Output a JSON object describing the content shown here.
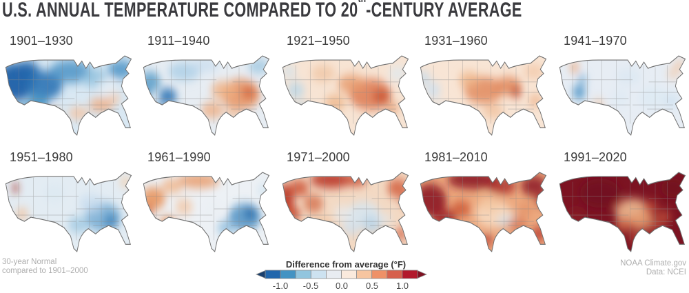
{
  "title": {
    "part1": "U.S. ANNUAL TEMPERATURE COMPARED TO 20",
    "sup": "th",
    "part2": "-CENTURY AVERAGE"
  },
  "maps": [
    {
      "label": "1901–1930",
      "base": "#d9e8f3",
      "blobs": [
        [
          22,
          30,
          24,
          18,
          "#1a5fa8",
          0.95
        ],
        [
          36,
          20,
          16,
          10,
          "#2166ac",
          0.9
        ],
        [
          58,
          33,
          22,
          14,
          "#2e74b5",
          0.9
        ],
        [
          50,
          50,
          13,
          9,
          "#4393c3",
          0.85
        ],
        [
          90,
          20,
          26,
          11,
          "#4d94c7",
          0.85
        ],
        [
          120,
          26,
          16,
          9,
          "#8fc0dd",
          0.8
        ],
        [
          152,
          18,
          16,
          9,
          "#4d94c7",
          0.85
        ],
        [
          30,
          60,
          13,
          8,
          "#4393c3",
          0.8
        ],
        [
          70,
          62,
          9,
          6,
          "#f2b88f",
          0.8
        ],
        [
          100,
          60,
          13,
          6,
          "#f5c4a2",
          0.85
        ],
        [
          128,
          52,
          15,
          7,
          "#f0ab7e",
          0.8
        ],
        [
          144,
          46,
          8,
          5,
          "#f5c4a2",
          0.8
        ],
        [
          135,
          35,
          12,
          8,
          "#e9eff5",
          0.7
        ]
      ]
    },
    {
      "label": "1911–1940",
      "base": "#e7edf3",
      "blobs": [
        [
          18,
          30,
          13,
          10,
          "#5b9ec9",
          0.85
        ],
        [
          40,
          44,
          11,
          8,
          "#2e74b5",
          0.9
        ],
        [
          28,
          57,
          9,
          7,
          "#7fb3d8",
          0.8
        ],
        [
          12,
          42,
          6,
          5,
          "#2e74b5",
          0.85
        ],
        [
          60,
          20,
          20,
          9,
          "#a9cde6",
          0.8
        ],
        [
          85,
          14,
          18,
          7,
          "#c6dcee",
          0.7
        ],
        [
          130,
          42,
          24,
          15,
          "#e8925f",
          0.85
        ],
        [
          140,
          40,
          9,
          6,
          "#d56a43",
          0.9
        ],
        [
          108,
          38,
          15,
          9,
          "#f0b285",
          0.8
        ],
        [
          95,
          57,
          14,
          8,
          "#efae83",
          0.8
        ],
        [
          152,
          15,
          13,
          7,
          "#9cc6e0",
          0.8
        ],
        [
          120,
          60,
          11,
          6,
          "#f2c09b",
          0.7
        ]
      ]
    },
    {
      "label": "1921–1950",
      "base": "#f7e4d4",
      "blobs": [
        [
          118,
          42,
          26,
          15,
          "#dd7a52",
          0.85
        ],
        [
          132,
          44,
          11,
          7,
          "#cb5a38",
          0.9
        ],
        [
          95,
          32,
          17,
          9,
          "#e79a6c",
          0.8
        ],
        [
          75,
          50,
          13,
          8,
          "#edb184",
          0.75
        ],
        [
          26,
          38,
          11,
          8,
          "#b9d7ea",
          0.8
        ],
        [
          34,
          57,
          8,
          6,
          "#a5cbe4",
          0.8
        ],
        [
          18,
          20,
          9,
          6,
          "#cfe2f0",
          0.7
        ],
        [
          152,
          22,
          11,
          7,
          "#dceaf4",
          0.7
        ],
        [
          60,
          22,
          15,
          8,
          "#f0c29e",
          0.7
        ],
        [
          145,
          55,
          9,
          6,
          "#e79a6c",
          0.7
        ]
      ]
    },
    {
      "label": "1931–1960",
      "base": "#f8e5d5",
      "blobs": [
        [
          88,
          38,
          24,
          13,
          "#e28a5e",
          0.85
        ],
        [
          118,
          34,
          17,
          9,
          "#e28a5e",
          0.85
        ],
        [
          128,
          40,
          7,
          5,
          "#c24f33",
          0.9
        ],
        [
          70,
          28,
          13,
          8,
          "#edb184",
          0.75
        ],
        [
          25,
          38,
          10,
          8,
          "#cde0f0",
          0.8
        ],
        [
          14,
          26,
          8,
          6,
          "#c2dbee",
          0.8
        ],
        [
          35,
          55,
          8,
          5,
          "#d8e7f2",
          0.7
        ],
        [
          150,
          20,
          13,
          7,
          "#f2c5a2",
          0.7
        ],
        [
          100,
          58,
          13,
          7,
          "#efbc96",
          0.7
        ],
        [
          152,
          48,
          9,
          6,
          "#ecae85",
          0.7
        ]
      ]
    },
    {
      "label": "1941–1970",
      "base": "#e7edf4",
      "blobs": [
        [
          34,
          40,
          8,
          7,
          "#4d94c7",
          0.85
        ],
        [
          38,
          28,
          6,
          5,
          "#7fb3d8",
          0.8
        ],
        [
          28,
          16,
          6,
          5,
          "#efa878",
          0.8
        ],
        [
          58,
          52,
          7,
          5,
          "#f2c09b",
          0.7
        ],
        [
          76,
          70,
          4,
          4,
          "#b02c20",
          0.95
        ],
        [
          73,
          66,
          6,
          5,
          "#e08a5f",
          0.7
        ],
        [
          95,
          25,
          16,
          8,
          "#d9e7f2",
          0.7
        ],
        [
          125,
          45,
          18,
          11,
          "#dce9f3",
          0.7
        ],
        [
          148,
          48,
          10,
          7,
          "#cfe2f0",
          0.75
        ],
        [
          158,
          14,
          8,
          5,
          "#f2c5a2",
          0.7
        ],
        [
          150,
          22,
          8,
          5,
          "#f2c5a2",
          0.6
        ],
        [
          85,
          45,
          11,
          8,
          "#dce9f3",
          0.6
        ]
      ]
    },
    {
      "label": "1951–1980",
      "base": "#e3ecf3",
      "blobs": [
        [
          130,
          48,
          22,
          14,
          "#74abd4",
          0.85
        ],
        [
          140,
          52,
          9,
          7,
          "#4186bd",
          0.85
        ],
        [
          100,
          55,
          13,
          8,
          "#9fc8e2",
          0.8
        ],
        [
          115,
          35,
          15,
          9,
          "#c6dcee",
          0.7
        ],
        [
          22,
          20,
          4,
          4,
          "#a32a20",
          0.95
        ],
        [
          30,
          45,
          8,
          6,
          "#f2c09b",
          0.75
        ],
        [
          52,
          60,
          7,
          5,
          "#eeb48c",
          0.7
        ],
        [
          15,
          55,
          6,
          5,
          "#f2c09b",
          0.7
        ],
        [
          158,
          14,
          8,
          5,
          "#f4cdaa",
          0.75
        ],
        [
          70,
          25,
          13,
          8,
          "#d9e7f2",
          0.6
        ]
      ]
    },
    {
      "label": "1961–1990",
      "base": "#edf1f5",
      "blobs": [
        [
          22,
          30,
          15,
          11,
          "#e79058",
          0.85
        ],
        [
          16,
          42,
          6,
          5,
          "#d2603c",
          0.9
        ],
        [
          40,
          55,
          11,
          8,
          "#e79058",
          0.8
        ],
        [
          45,
          18,
          13,
          7,
          "#f0b285",
          0.8
        ],
        [
          78,
          13,
          26,
          7,
          "#e8935f",
          0.8
        ],
        [
          60,
          38,
          11,
          8,
          "#f2c09b",
          0.7
        ],
        [
          135,
          48,
          20,
          13,
          "#4f92c4",
          0.85
        ],
        [
          142,
          44,
          8,
          6,
          "#2c6fae",
          0.9
        ],
        [
          112,
          58,
          11,
          7,
          "#8cbcdd",
          0.8
        ],
        [
          158,
          22,
          8,
          6,
          "#cfe2f0",
          0.7
        ],
        [
          95,
          40,
          13,
          9,
          "#e9eef3",
          0.6
        ]
      ]
    },
    {
      "label": "1971–2000",
      "base": "#f3d9c3",
      "blobs": [
        [
          14,
          30,
          10,
          14,
          "#b93526",
          0.9
        ],
        [
          22,
          45,
          10,
          8,
          "#c8442c",
          0.85
        ],
        [
          30,
          20,
          12,
          8,
          "#cc5336",
          0.85
        ],
        [
          48,
          35,
          12,
          9,
          "#d4714e",
          0.8
        ],
        [
          70,
          12,
          26,
          8,
          "#b93526",
          0.9
        ],
        [
          100,
          12,
          14,
          6,
          "#c8442c",
          0.85
        ],
        [
          152,
          20,
          13,
          9,
          "#d4603f",
          0.85
        ],
        [
          162,
          32,
          7,
          5,
          "#c8442c",
          0.8
        ],
        [
          110,
          45,
          20,
          12,
          "#d7e5f0",
          0.9
        ],
        [
          120,
          55,
          12,
          8,
          "#b8d3e8",
          0.85
        ],
        [
          95,
          58,
          12,
          7,
          "#cfe0ee",
          0.8
        ],
        [
          85,
          45,
          12,
          8,
          "#e4ecf3",
          0.7
        ],
        [
          135,
          50,
          10,
          6,
          "#dceaf4",
          0.6
        ],
        [
          60,
          55,
          12,
          7,
          "#f0c09a",
          0.7
        ],
        [
          156,
          64,
          7,
          6,
          "#cc5336",
          0.75
        ],
        [
          40,
          60,
          8,
          5,
          "#eeb48c",
          0.6
        ]
      ]
    },
    {
      "label": "1981–2010",
      "base": "#eda97f",
      "blobs": [
        [
          22,
          32,
          20,
          16,
          "#8c1823",
          0.9
        ],
        [
          40,
          50,
          14,
          10,
          "#9e1f26",
          0.85
        ],
        [
          75,
          12,
          32,
          9,
          "#8c1823",
          0.9
        ],
        [
          110,
          18,
          18,
          8,
          "#a62728",
          0.8
        ],
        [
          150,
          18,
          16,
          10,
          "#8c1823",
          0.85
        ],
        [
          160,
          32,
          8,
          6,
          "#9e1f26",
          0.8
        ],
        [
          100,
          45,
          22,
          13,
          "#f7dcc2",
          0.9
        ],
        [
          95,
          35,
          14,
          8,
          "#f2c6a0",
          0.8
        ],
        [
          112,
          52,
          8,
          5,
          "#cfe0ee",
          0.8
        ],
        [
          122,
          48,
          6,
          4,
          "#dce9f3",
          0.8
        ],
        [
          60,
          40,
          12,
          8,
          "#c8502f",
          0.75
        ],
        [
          130,
          55,
          12,
          7,
          "#d4714e",
          0.7
        ],
        [
          140,
          40,
          10,
          6,
          "#e08a5f",
          0.6
        ],
        [
          156,
          64,
          8,
          7,
          "#b02c26",
          0.8
        ],
        [
          92,
          70,
          8,
          6,
          "#b02c26",
          0.7
        ]
      ]
    },
    {
      "label": "1991–2020",
      "base": "#7c1322",
      "blobs": [
        [
          100,
          42,
          22,
          12,
          "#f0bd92",
          0.9
        ],
        [
          112,
          52,
          16,
          9,
          "#e59a6c",
          0.85
        ],
        [
          90,
          55,
          12,
          7,
          "#d4714e",
          0.8
        ],
        [
          122,
          38,
          10,
          6,
          "#c24b38",
          0.8
        ],
        [
          128,
          58,
          10,
          6,
          "#b23a30",
          0.75
        ],
        [
          138,
          48,
          10,
          7,
          "#c8543c",
          0.7
        ],
        [
          80,
          35,
          8,
          5,
          "#a62b2b",
          0.7
        ],
        [
          60,
          25,
          25,
          14,
          "#6f0f1e",
          0.8
        ],
        [
          150,
          20,
          15,
          9,
          "#6f0f1e",
          0.7
        ],
        [
          30,
          50,
          14,
          10,
          "#8e1a26",
          0.6
        ],
        [
          105,
          68,
          10,
          5,
          "#c8543c",
          0.7
        ]
      ]
    }
  ],
  "legend": {
    "title": "Difference from average (°F)",
    "ticks": [
      "-1.0",
      "-0.5",
      "0.0",
      "0.5",
      "1.0"
    ],
    "segments": [
      "#2166ac",
      "#4393c3",
      "#92c5de",
      "#cde2f0",
      "#e8ecf1",
      "#faeadd",
      "#f7c5a0",
      "#ee9168",
      "#d6604d",
      "#b2182b"
    ],
    "left_arrow": "#1a3f6d",
    "right_arrow": "#7f1021",
    "border": "#8c8c8c"
  },
  "footer_left": {
    "line1": "30-year Normal",
    "line2": "compared to 1901–2000"
  },
  "footer_right": {
    "line1": "NOAA Climate.gov",
    "line2": "Data: NCEI"
  },
  "colors": {
    "title_text": "#3a3a3e",
    "label_text": "#3b3b3b",
    "footnote_text": "#aeaeae",
    "map_outline": "#6f6f6f",
    "state_lines": "#8a8a8a"
  },
  "chart_data": {
    "type": "heatmap",
    "title": "U.S. ANNUAL TEMPERATURE COMPARED TO 20th-CENTURY AVERAGE",
    "unit": "°F",
    "layout": "small multiples, 5 columns x 2 rows of contiguous-U.S. anomaly maps",
    "colorbar": {
      "label": "Difference from average (°F)",
      "ticks": [
        -1.0,
        -0.5,
        0.0,
        0.5,
        1.0
      ],
      "range": [
        -1.25,
        1.25
      ],
      "colors": [
        "#2166ac",
        "#4393c3",
        "#92c5de",
        "#cde2f0",
        "#e8ecf1",
        "#faeadd",
        "#f7c5a0",
        "#ee9168",
        "#d6604d",
        "#b2182b"
      ],
      "open_ended": true
    },
    "panels": [
      {
        "period": "1901–1930",
        "pattern": "much cooler than average across the West and northern Plains; small warm patches in the South/Southeast"
      },
      {
        "period": "1911–1940",
        "pattern": "cooler in the West; warmer across the Southeast and mid-South"
      },
      {
        "period": "1921–1950",
        "pattern": "warmer across the central and eastern U.S.; scattered cool pockets in the West"
      },
      {
        "period": "1931–1960",
        "pattern": "slightly warmer over most areas, strongest in the central Plains and Ohio Valley"
      },
      {
        "period": "1941–1970",
        "pattern": "near average nearly everywhere with a faint cool tint"
      },
      {
        "period": "1951–1980",
        "pattern": "slightly cooler overall, coolest in the Southeast; small warm spots in the West"
      },
      {
        "period": "1961–1990",
        "pattern": "warmer in the West and northern border states; cooler in the Southeast"
      },
      {
        "period": "1971–2000",
        "pattern": "much warmer in the West and along the northern tier; near or slightly below average in the central South"
      },
      {
        "period": "1981–2010",
        "pattern": "much warmer almost everywhere, strongest in the West, North and Northeast; near average in parts of the mid-South"
      },
      {
        "period": "1991–2020",
        "pattern": "warmest period on record: about 1°F or more above average across most of the country"
      }
    ],
    "notes": [
      "30-year Normal compared to 1901–2000"
    ],
    "source": "NOAA Climate.gov, Data: NCEI"
  }
}
